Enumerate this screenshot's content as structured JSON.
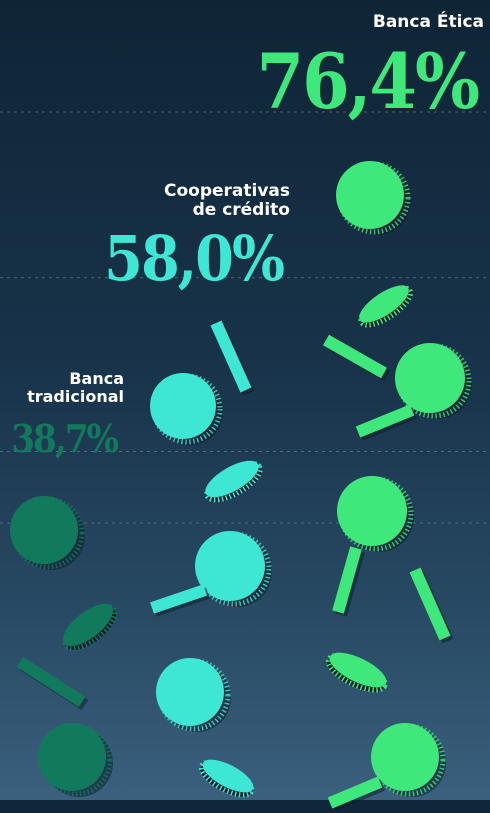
{
  "chart_data": {
    "type": "bar",
    "title": "",
    "xlabel": "",
    "ylabel": "",
    "ylim": [
      0,
      100
    ],
    "grid": true,
    "categories": [
      "Banca tradicional",
      "Cooperativas de crédito",
      "Banca Ética"
    ],
    "values": [
      38.7,
      58.0,
      76.4
    ],
    "value_labels": [
      "38,7%",
      "58,0%",
      "76,4%"
    ],
    "category_lines": [
      [
        "Banca",
        "tradicional"
      ],
      [
        "Cooperativas",
        "de crédito"
      ],
      [
        "Banca Ética"
      ]
    ],
    "colors": [
      "#127a5c",
      "#3ee6d4",
      "#3fe87a"
    ]
  },
  "style": {
    "background_top": "#0f2536",
    "background_bottom": "#3c6280",
    "label_color": "#ffffff",
    "edge_color": "#0c1c2a"
  }
}
